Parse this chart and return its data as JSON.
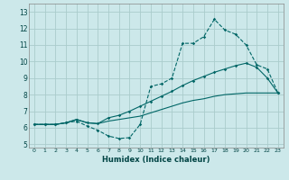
{
  "xlabel": "Humidex (Indice chaleur)",
  "bg_color": "#cce8ea",
  "grid_color": "#aacccc",
  "line_color": "#006666",
  "xlim": [
    -0.5,
    23.5
  ],
  "ylim": [
    4.8,
    13.5
  ],
  "xticks": [
    0,
    1,
    2,
    3,
    4,
    5,
    6,
    7,
    8,
    9,
    10,
    11,
    12,
    13,
    14,
    15,
    16,
    17,
    18,
    19,
    20,
    21,
    22,
    23
  ],
  "yticks": [
    5,
    6,
    7,
    8,
    9,
    10,
    11,
    12,
    13
  ],
  "series1_x": [
    0,
    1,
    2,
    3,
    4,
    5,
    6,
    7,
    8,
    9,
    10,
    11,
    12,
    13,
    14,
    15,
    16,
    17,
    18,
    19,
    20,
    21,
    22,
    23
  ],
  "series1_y": [
    6.2,
    6.2,
    6.2,
    6.3,
    6.4,
    6.1,
    5.85,
    5.5,
    5.35,
    5.4,
    6.2,
    8.5,
    8.65,
    9.0,
    11.1,
    11.1,
    11.5,
    12.55,
    11.9,
    11.65,
    11.0,
    9.8,
    9.55,
    8.1
  ],
  "series2_x": [
    0,
    1,
    2,
    3,
    4,
    5,
    6,
    7,
    8,
    9,
    10,
    11,
    12,
    13,
    14,
    15,
    16,
    17,
    18,
    19,
    20,
    21,
    22,
    23
  ],
  "series2_y": [
    6.2,
    6.2,
    6.2,
    6.3,
    6.5,
    6.3,
    6.25,
    6.4,
    6.5,
    6.6,
    6.7,
    6.9,
    7.1,
    7.3,
    7.5,
    7.65,
    7.75,
    7.9,
    8.0,
    8.05,
    8.1,
    8.1,
    8.1,
    8.1
  ],
  "series3_x": [
    0,
    1,
    2,
    3,
    4,
    5,
    6,
    7,
    8,
    9,
    10,
    11,
    12,
    13,
    14,
    15,
    16,
    17,
    18,
    19,
    20,
    21,
    22,
    23
  ],
  "series3_y": [
    6.2,
    6.2,
    6.2,
    6.3,
    6.5,
    6.3,
    6.25,
    6.6,
    6.75,
    7.0,
    7.3,
    7.6,
    7.9,
    8.2,
    8.55,
    8.85,
    9.1,
    9.35,
    9.55,
    9.75,
    9.9,
    9.65,
    9.0,
    8.1
  ]
}
